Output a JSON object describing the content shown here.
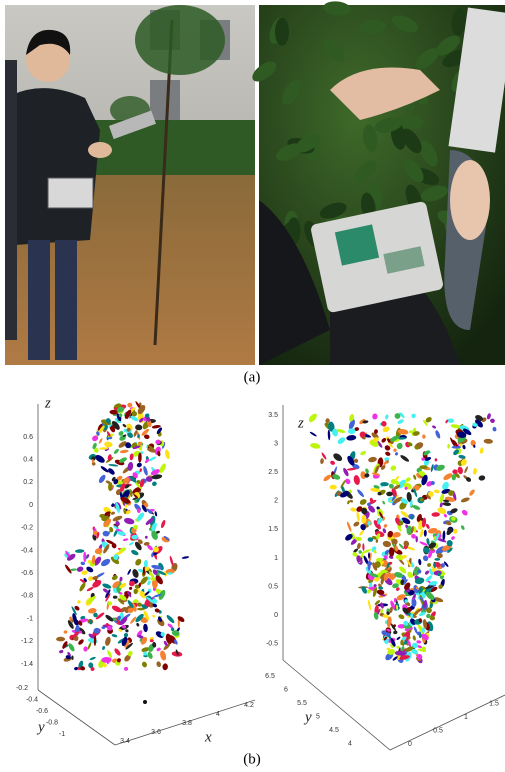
{
  "figure": {
    "panels": [
      {
        "label": "(a)"
      },
      {
        "label": "(b)"
      }
    ],
    "plot_left": {
      "z_label": "z",
      "y_label": "y",
      "x_label": "x",
      "z_ticks": [
        "0.6",
        "0.4",
        "0.2",
        "0",
        "-0.2",
        "-0.4",
        "-0.6",
        "-0.8",
        "-1",
        "-1.2",
        "-1.4"
      ],
      "y_ticks": [
        "-0.2",
        "-0.4",
        "-0.6",
        "-0.8",
        "-1"
      ],
      "x_ticks": [
        "3.4",
        "3.6",
        "3.8",
        "4",
        "4.2"
      ]
    },
    "plot_right": {
      "z_label": "z",
      "y_label": "y",
      "z_ticks": [
        "3.5",
        "3",
        "2.5",
        "2",
        "1.5",
        "1",
        "0.5",
        "0",
        "-0.5"
      ],
      "y_ticks": [
        "6.5",
        "6",
        "5.5",
        "5",
        "4.5",
        "4"
      ],
      "x_ticks": [
        "0",
        "0.5",
        "1",
        "1.5"
      ]
    }
  }
}
